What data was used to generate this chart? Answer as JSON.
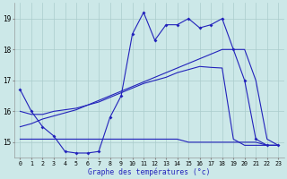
{
  "xlabel": "Graphe des températures (°c)",
  "bg_color": "#cce8e8",
  "line_color": "#2222bb",
  "grid_color": "#aacccc",
  "hours": [
    0,
    1,
    2,
    3,
    4,
    5,
    6,
    7,
    8,
    9,
    10,
    11,
    12,
    13,
    14,
    15,
    16,
    17,
    18,
    19,
    20,
    21,
    22,
    23
  ],
  "temp_actual": [
    16.7,
    16.0,
    15.5,
    15.2,
    14.7,
    14.65,
    14.65,
    14.7,
    15.8,
    16.5,
    18.5,
    19.2,
    18.3,
    18.8,
    18.8,
    19.0,
    18.7,
    18.8,
    19.0,
    18.0,
    17.0,
    15.1,
    14.9,
    14.9
  ],
  "temp_min": [
    15.1,
    15.1,
    15.1,
    15.1,
    15.1,
    15.1,
    15.1,
    15.1,
    15.1,
    15.1,
    15.1,
    15.1,
    15.1,
    15.1,
    15.1,
    15.0,
    15.0,
    15.0,
    15.0,
    15.0,
    15.0,
    15.0,
    14.9,
    14.9
  ],
  "temp_max": [
    15.5,
    15.6,
    15.75,
    15.85,
    15.95,
    16.05,
    16.2,
    16.35,
    16.5,
    16.65,
    16.8,
    16.95,
    17.1,
    17.25,
    17.4,
    17.55,
    17.7,
    17.85,
    18.0,
    18.0,
    18.0,
    17.0,
    15.1,
    14.9
  ],
  "temp_avg": [
    16.0,
    15.9,
    15.9,
    16.0,
    16.05,
    16.1,
    16.2,
    16.3,
    16.45,
    16.6,
    16.75,
    16.9,
    17.0,
    17.1,
    17.25,
    17.35,
    17.45,
    17.42,
    17.4,
    15.1,
    14.9,
    14.9,
    14.9,
    14.9
  ],
  "ylim": [
    14.5,
    19.5
  ],
  "yticks": [
    15,
    16,
    17,
    18,
    19
  ],
  "xlim": [
    -0.5,
    23.5
  ],
  "figw": 3.2,
  "figh": 2.0,
  "dpi": 100
}
